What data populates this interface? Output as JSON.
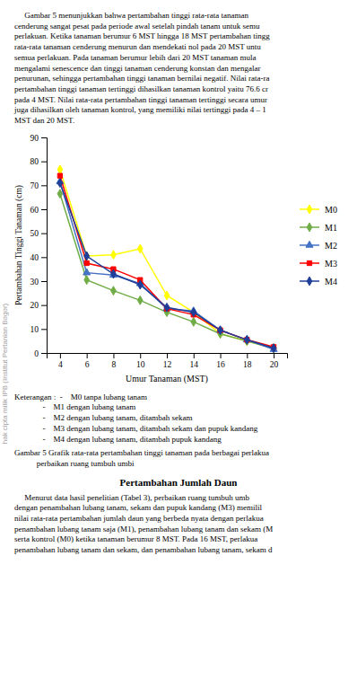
{
  "chart_data": {
    "type": "line",
    "title": "",
    "xlabel": "Umur Tanaman (MST)",
    "ylabel": "Pertambahan Tinggi Tanaman (cm)",
    "x": [
      4,
      6,
      8,
      10,
      12,
      14,
      16,
      18,
      20
    ],
    "series": [
      {
        "name": "M0",
        "color": "#ffff00",
        "marker": "diamond",
        "values": [
          76.6,
          40.5,
          41.0,
          43.5,
          24.0,
          17.0,
          8.0,
          5.0,
          2.0
        ]
      },
      {
        "name": "M1",
        "color": "#70ad47",
        "marker": "diamond",
        "values": [
          66.5,
          30.5,
          26.0,
          22.0,
          17.0,
          13.0,
          8.0,
          5.0,
          2.0
        ]
      },
      {
        "name": "M2",
        "color": "#4472c4",
        "marker": "triangle",
        "values": [
          71.5,
          33.5,
          32.5,
          29.0,
          18.5,
          17.5,
          9.5,
          5.5,
          1.5
        ]
      },
      {
        "name": "M3",
        "color": "#ff0000",
        "marker": "square",
        "values": [
          74.0,
          37.5,
          35.0,
          30.5,
          18.5,
          16.0,
          9.5,
          5.5,
          2.5
        ]
      },
      {
        "name": "M4",
        "color": "#1f3e99",
        "marker": "diamond",
        "values": [
          71.0,
          40.5,
          33.0,
          28.5,
          19.0,
          17.0,
          9.5,
          5.5,
          2.0
        ]
      }
    ],
    "xlim": [
      3,
      21
    ],
    "xticks": [
      4,
      6,
      8,
      10,
      12,
      14,
      16,
      18,
      20
    ],
    "ylim": [
      0,
      90
    ],
    "yticks": [
      0,
      10,
      20,
      30,
      40,
      50,
      60,
      70,
      80,
      90
    ],
    "grid": false,
    "legend": "right"
  },
  "text_above": [
    "     Gambar 5 menunjukkan bahwa pertambahan tinggi rata-rata tanaman",
    "cenderung sangat pesat pada periode awal setelah pindah tanam untuk semu",
    "perlakuan. Ketika tanaman berumur 6 MST hingga 18 MST pertambahan tingg",
    "rata-rata tanaman cenderung menurun dan mendekati nol pada 20 MST untu",
    "semua perlakuan. Pada tanaman berumur lebih dari 20 MST tanaman mula",
    "mengalami senescence dan tinggi tanaman cenderung konstan dan mengalar",
    "penurunan, sehingga pertambahan tinggi tanaman bernilai negatif. Nilai rata-ra",
    "pertambahan tinggi tanaman tertinggi dihasilkan tanaman kontrol yaitu 76.6 cr",
    "pada 4 MST. Nilai rata-rata pertambahan tinggi tanaman tertinggi secara umur",
    "juga dihasilkan oleh tanaman kontrol, yang memiliki nilai tertinggi pada 4 – 1",
    "MST dan 20 MST."
  ],
  "notes": [
    "Keterangan :  -    M0 tanpa lubang tanam",
    "              -    M1 dengan lubang tanam",
    "              -    M2 dengan lubang tanam, ditambah sekam",
    "              -    M3 dengan lubang tanam, ditambah sekam dan pupuk kandang",
    "              -    M4 dengan lubang tanam, ditambah pupuk kandang"
  ],
  "caption": [
    "Gambar 5 Grafik rata-rata pertambahan tinggi tanaman pada berbagai perlakua",
    "           perbaikan ruang tumbuh umbi"
  ],
  "section_title": "Pertambahan Jumlah Daun",
  "text_below": [
    "     Menurut data hasil penelitian (Tabel 3), perbaikan ruang tumbuh umb",
    "dengan penambahan lubang tanam, sekam dan pupuk kandang (M3) memilil",
    "nilai rata-rata pertambahan jumlah daun yang berbeda nyata dengan perlakua",
    "penambahan lubang tanam saja (M1), penambahan lubang tanam dan sekam (M",
    "serta kontrol (M0) ketika tanaman berumur 8 MST. Pada 16 MST, perlakua",
    "penambahan lubang tanam dan sekam, dan penambahan lubang tanam, sekam d"
  ],
  "watermark": "hak cipta milik IPB (Institut Pertanian Bogor)"
}
